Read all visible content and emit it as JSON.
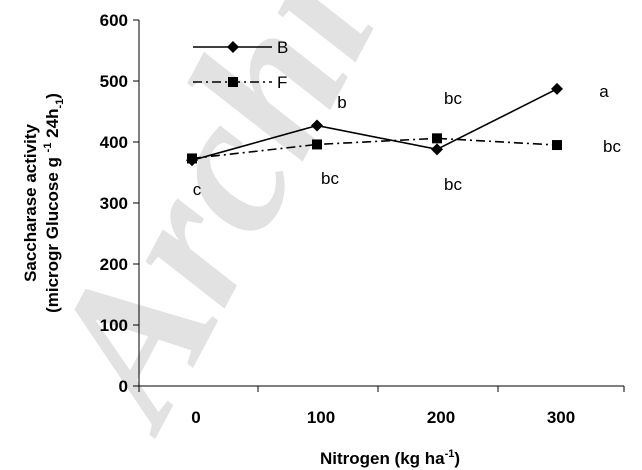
{
  "watermark": "Archive of SID",
  "chart_data": {
    "type": "line",
    "categories": [
      "0",
      "100",
      "200",
      "300"
    ],
    "x": [
      0,
      100,
      200,
      300
    ],
    "series": [
      {
        "name": "B",
        "values": [
          370,
          427,
          388,
          487
        ],
        "line_style": "solid",
        "marker": "diamond",
        "labels": [
          "c",
          "b",
          "bc",
          "a"
        ]
      },
      {
        "name": "F",
        "values": [
          373,
          396,
          406,
          395
        ],
        "line_style": "dash-dot",
        "marker": "square",
        "labels": [
          "",
          "bc",
          "bc",
          "bc"
        ]
      }
    ],
    "ylim": [
      0,
      600
    ],
    "yticks": [
      0,
      100,
      200,
      300,
      400,
      500,
      600
    ],
    "ytick_labels": [
      "0",
      "100",
      "200",
      "300",
      "400",
      "500",
      "600"
    ],
    "xlabel": {
      "text": "Nitrogen (kg ha",
      "sup": "-1",
      "suffix": ")"
    },
    "ylabel": {
      "line1": "Saccharase activity",
      "line2_text": "(microgr Glucose g ",
      "line2_sup": "-1",
      "line2_mid": " 24h",
      "line2_sub": "-1",
      "line2_end": ")"
    },
    "legend_position": "top-left",
    "grid": false,
    "colors": {
      "line": "#000000",
      "watermark": "#e2e2e2"
    }
  }
}
